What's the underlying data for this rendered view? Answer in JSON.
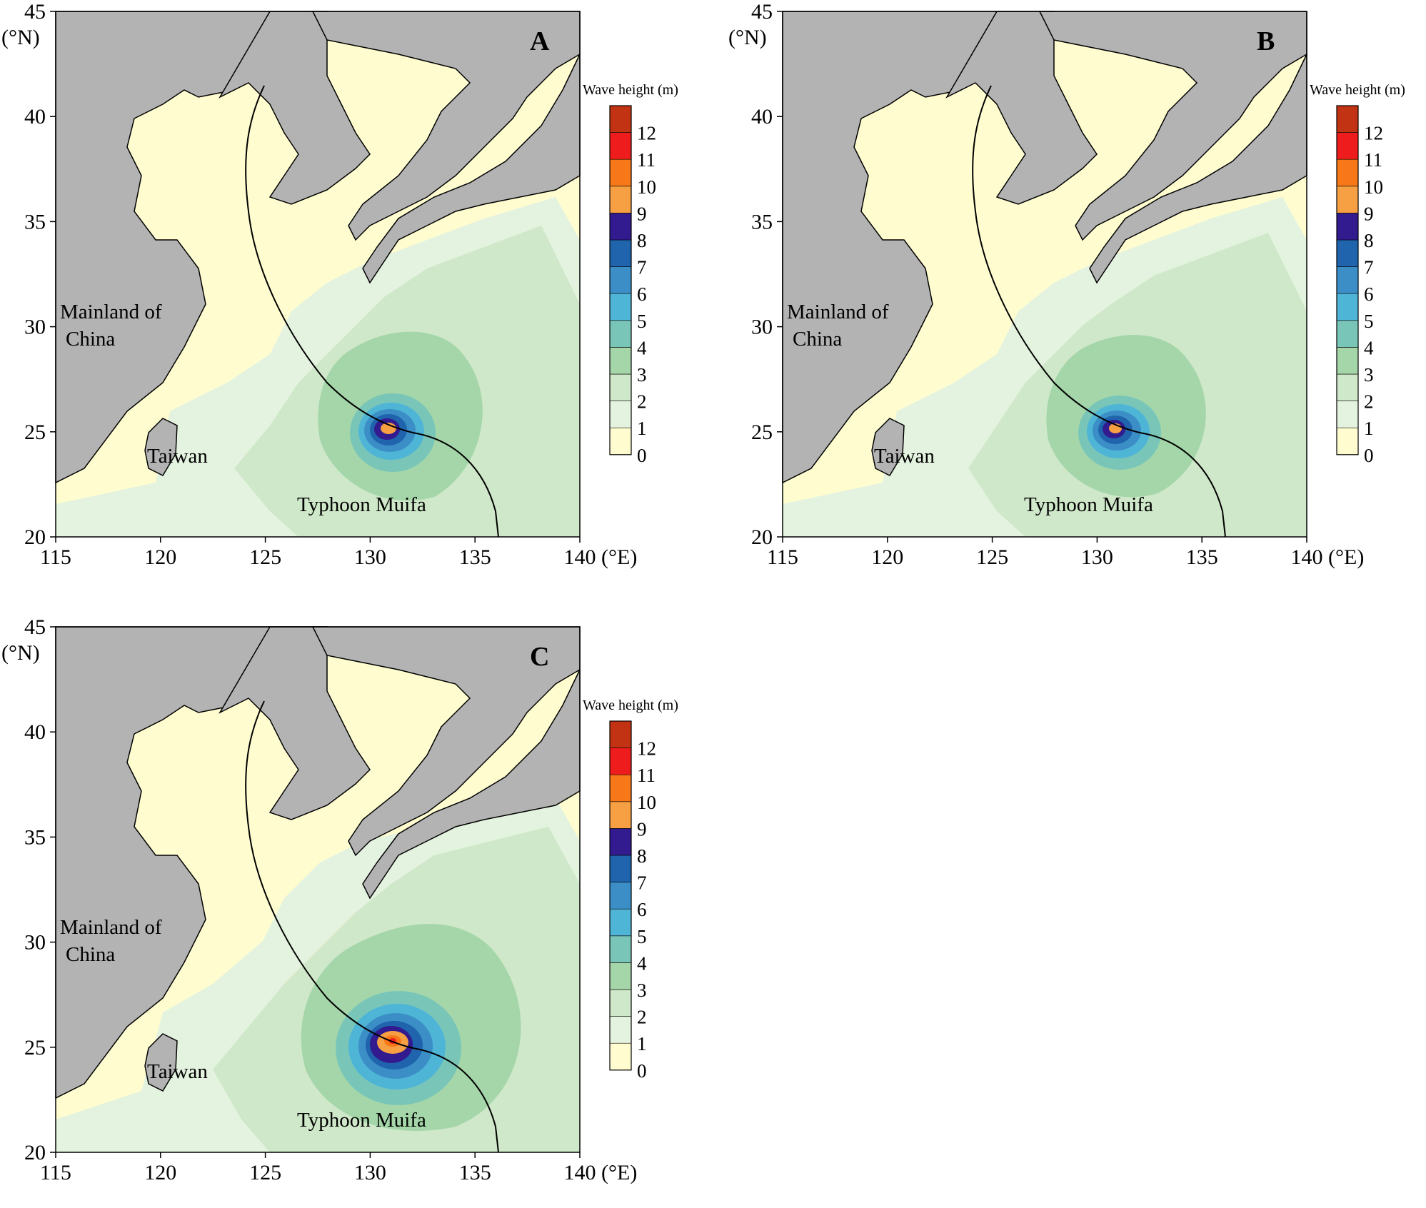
{
  "figure": {
    "panels": [
      {
        "id": "A",
        "letter": "A"
      },
      {
        "id": "B",
        "letter": "B"
      },
      {
        "id": "C",
        "letter": "C"
      }
    ]
  },
  "map": {
    "lon_ticks": [
      "115",
      "120",
      "125",
      "130",
      "135",
      "140"
    ],
    "lat_ticks": [
      "20",
      "25",
      "30",
      "35",
      "40",
      "45"
    ],
    "lon_unit": "(°E)",
    "lat_unit": "(°N)",
    "lon_range": [
      115,
      140
    ],
    "lat_range": [
      20,
      45
    ],
    "labels": {
      "mainland_line1": "Mainland of",
      "mainland_line2": "China",
      "taiwan": "Taiwan",
      "typhoon": "Typhoon Muifa"
    }
  },
  "colorbar": {
    "title": "Wave height (m)",
    "tick_labels": [
      "0",
      "1",
      "2",
      "3",
      "4",
      "5",
      "6",
      "7",
      "8",
      "9",
      "10",
      "11",
      "12"
    ],
    "colors": [
      "#fffdd0",
      "#e4f3df",
      "#cfe8c9",
      "#a4d6a9",
      "#79c6b8",
      "#4fb5d6",
      "#3b8fc6",
      "#1f64ad",
      "#321a8f",
      "#f7a043",
      "#f77719",
      "#ee1c1c",
      "#c23313"
    ]
  },
  "colors": {
    "land": "#b3b3b3",
    "coast_shadow": "#ffffff",
    "sea_low": "#fffdd0",
    "track": "#000000"
  }
}
